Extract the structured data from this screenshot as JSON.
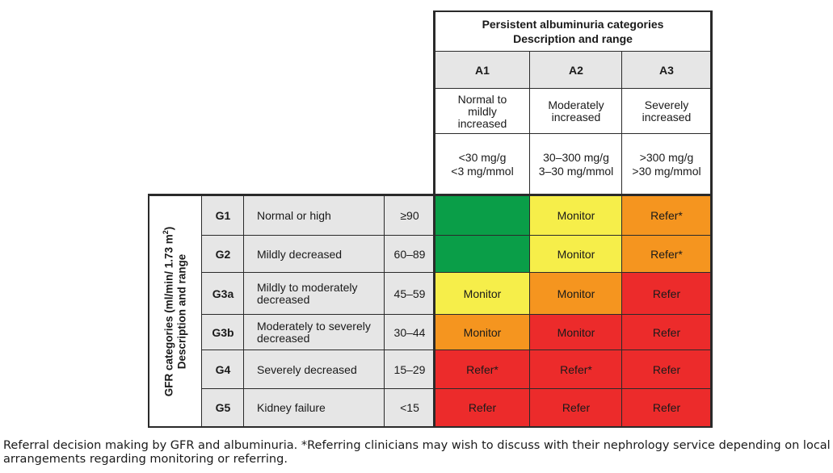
{
  "albuminuria_header": {
    "title": "Persistent albuminuria categories",
    "subtitle": "Description and range"
  },
  "albuminuria_categories": [
    {
      "code": "A1",
      "description": "Normal to mildly increased",
      "range_line1": "<30 mg/g",
      "range_line2": "<3 mg/mmol"
    },
    {
      "code": "A2",
      "description": "Moderately increased",
      "range_line1": "30–300 mg/g",
      "range_line2": "3–30 mg/mmol"
    },
    {
      "code": "A3",
      "description": "Severely increased",
      "range_line1": ">300 mg/g",
      "range_line2": ">30 mg/mmol"
    }
  ],
  "gfr_axis": {
    "label_line1": "GFR categories (ml/min/ 1.73 m",
    "label_sup": "2",
    "label_close": ")",
    "label_line2": "Description and range"
  },
  "gfr_rows": [
    {
      "code": "G1",
      "description": "Normal or high",
      "range": "≥90",
      "cells": [
        {
          "text": "",
          "color": "green"
        },
        {
          "text": "Monitor",
          "color": "yellow"
        },
        {
          "text": "Refer*",
          "color": "orange"
        }
      ]
    },
    {
      "code": "G2",
      "description": "Mildly decreased",
      "range": "60–89",
      "cells": [
        {
          "text": "",
          "color": "green"
        },
        {
          "text": "Monitor",
          "color": "yellow"
        },
        {
          "text": "Refer*",
          "color": "orange"
        }
      ]
    },
    {
      "code": "G3a",
      "description": "Mildly to moderately decreased",
      "range": "45–59",
      "cells": [
        {
          "text": "Monitor",
          "color": "yellow"
        },
        {
          "text": "Monitor",
          "color": "orange"
        },
        {
          "text": "Refer",
          "color": "red"
        }
      ]
    },
    {
      "code": "G3b",
      "description": "Moderately to severely decreased",
      "range": "30–44",
      "cells": [
        {
          "text": "Monitor",
          "color": "orange"
        },
        {
          "text": "Monitor",
          "color": "red"
        },
        {
          "text": "Refer",
          "color": "red"
        }
      ]
    },
    {
      "code": "G4",
      "description": "Severely decreased",
      "range": "15–29",
      "cells": [
        {
          "text": "Refer*",
          "color": "red"
        },
        {
          "text": "Refer*",
          "color": "red"
        },
        {
          "text": "Refer",
          "color": "red"
        }
      ]
    },
    {
      "code": "G5",
      "description": "Kidney failure",
      "range": "<15",
      "cells": [
        {
          "text": "Refer",
          "color": "red"
        },
        {
          "text": "Refer",
          "color": "red"
        },
        {
          "text": "Refer",
          "color": "red"
        }
      ]
    }
  ],
  "colors": {
    "green": "#0a9e48",
    "yellow": "#f6ee4a",
    "orange": "#f5951f",
    "red": "#ec2b2b",
    "grey": "#e6e6e6"
  },
  "caption": "Referral decision making by GFR and albuminuria. *Referring clinicians may wish to discuss with their nephrology service depending on local arrangements regarding monitoring or referring."
}
